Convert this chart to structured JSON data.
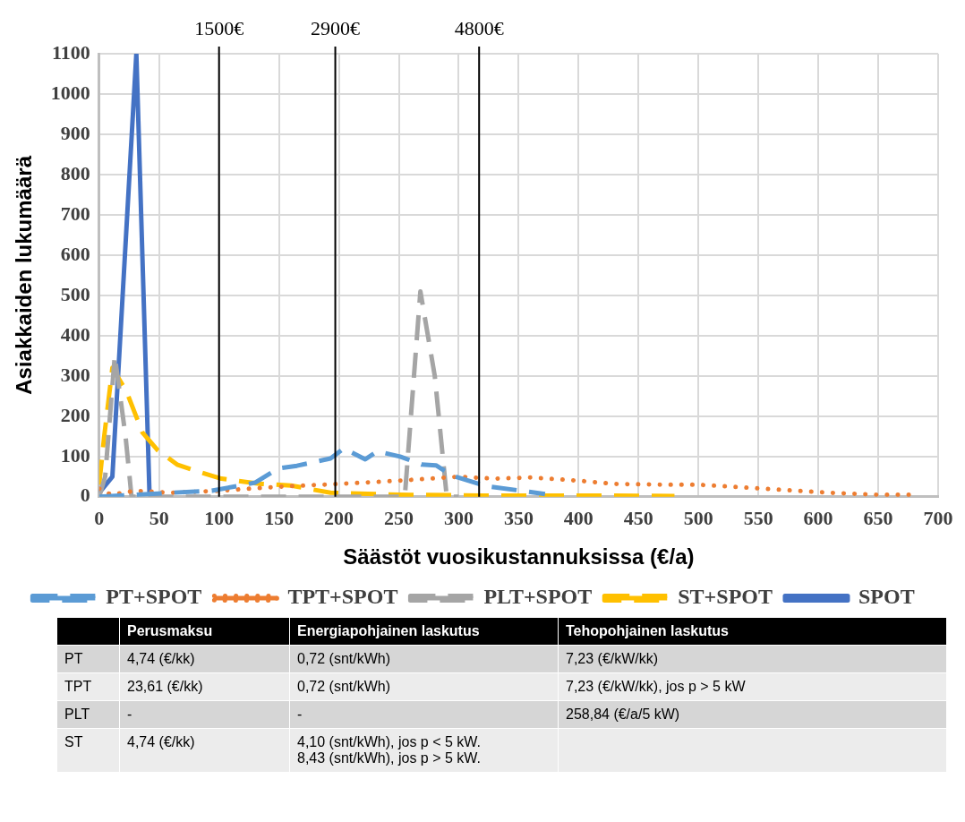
{
  "chart_data": {
    "type": "line",
    "xlabel": "Säästöt vuosikustannuksissa (€/a)",
    "ylabel": "Asiakkaiden lukumäärä",
    "xlim": [
      0,
      700
    ],
    "xticks": [
      0,
      50,
      100,
      150,
      200,
      250,
      300,
      350,
      400,
      450,
      500,
      550,
      600,
      650,
      700
    ],
    "ylim": [
      0,
      1100
    ],
    "yticks": [
      0,
      100,
      200,
      300,
      400,
      500,
      600,
      700,
      800,
      900,
      1000,
      1100
    ],
    "grid": true,
    "legend": "bottom",
    "marker": "none",
    "series": [
      {
        "name": "PT+SPOT",
        "color": "#5b9bd5",
        "line_style": "dashed",
        "x": [
          0,
          30,
          60,
          94,
          130,
          149,
          165,
          193,
          204,
          222,
          232,
          251,
          269,
          281,
          295,
          322,
          372
        ],
        "values": [
          0,
          5,
          10,
          15,
          35,
          70,
          77,
          95,
          120,
          93,
          113,
          100,
          80,
          78,
          52,
          27,
          7
        ]
      },
      {
        "name": "TPT+SPOT",
        "color": "#ed7d31",
        "line_style": "dotted",
        "x": [
          0,
          10,
          30,
          60,
          100,
          150,
          200,
          250,
          300,
          330,
          360,
          400,
          430,
          470,
          500,
          555,
          610,
          650,
          681
        ],
        "values": [
          20,
          5,
          15,
          10,
          15,
          25,
          32,
          40,
          50,
          45,
          48,
          40,
          32,
          30,
          30,
          20,
          10,
          5,
          5
        ]
      },
      {
        "name": "PLT+SPOT",
        "color": "#a5a5a5",
        "line_style": "dashed",
        "x": [
          0,
          5,
          13,
          22,
          27,
          35,
          100,
          200,
          255,
          268,
          280,
          290,
          300
        ],
        "values": [
          0,
          50,
          350,
          150,
          0,
          0,
          0,
          0,
          0,
          510,
          300,
          0,
          0
        ]
      },
      {
        "name": "ST+SPOT",
        "color": "#ffc000",
        "line_style": "dashed",
        "x": [
          0,
          4,
          11,
          23,
          36,
          49,
          65,
          80,
          102,
          135,
          160,
          193,
          250,
          320,
          400,
          480
        ],
        "values": [
          30,
          145,
          320,
          260,
          160,
          115,
          80,
          65,
          45,
          32,
          28,
          10,
          5,
          3,
          3,
          2
        ]
      },
      {
        "name": "SPOT",
        "color": "#4472c4",
        "line_style": "solid",
        "x": [
          0,
          11,
          31,
          42
        ],
        "values": [
          10,
          50,
          1100,
          5
        ]
      }
    ],
    "ref_lines": [
      {
        "axis": "x",
        "value": 100,
        "label": "1500€",
        "color": "#000000"
      },
      {
        "axis": "x",
        "value": 197,
        "label": "2900€",
        "color": "#000000"
      },
      {
        "axis": "x",
        "value": 317,
        "label": "4800€",
        "color": "#000000"
      }
    ],
    "annotations": [
      "Perusmaksu",
      "Energiapohjainen laskutus",
      "Tehopohjainen laskutus",
      "PT",
      "4,74 (€/kk)",
      "0,72 (snt/kWh)",
      "7,23 (€/kW/kk)",
      "TPT",
      "23,61 (€/kk)",
      "0,72 (snt/kWh)",
      "7,23 (€/kW/kk), jos p > 5 kW",
      "PLT",
      "-",
      "-",
      "258,84 (€/a/5 kW)",
      "ST",
      "4,74 (€/kk)",
      "4,10 (snt/kWh), jos p < 5 kW.\n8,43 (snt/kWh), jos p > 5 kW."
    ]
  }
}
